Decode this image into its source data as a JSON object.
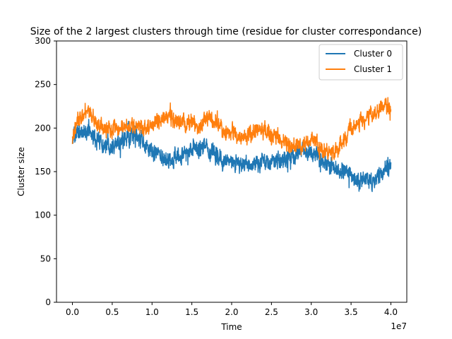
{
  "chart_data": {
    "type": "line",
    "title": "Size of the 2 largest clusters through time (residue for cluster correspondance)",
    "xlabel": "Time",
    "ylabel": "Cluster size",
    "x_offset_label": "1e7",
    "xlim": [
      -2000000,
      42000000
    ],
    "ylim": [
      0,
      300
    ],
    "x_ticks": [
      0,
      5000000,
      10000000,
      15000000,
      20000000,
      25000000,
      30000000,
      35000000,
      40000000
    ],
    "x_tick_labels": [
      "0.0",
      "0.5",
      "1.0",
      "1.5",
      "2.0",
      "2.5",
      "3.0",
      "3.5",
      "4.0"
    ],
    "y_ticks": [
      0,
      50,
      100,
      150,
      200,
      250,
      300
    ],
    "y_tick_labels": [
      "0",
      "50",
      "100",
      "150",
      "200",
      "250",
      "300"
    ],
    "grid": false,
    "legend_position": "upper right",
    "series": [
      {
        "name": "Cluster 0",
        "color": "#1f77b4",
        "x": [
          0,
          1000000,
          2000000,
          3000000,
          4000000,
          5000000,
          6000000,
          7000000,
          8000000,
          9000000,
          10000000,
          11000000,
          12000000,
          13000000,
          14000000,
          15000000,
          16000000,
          17000000,
          18000000,
          19000000,
          20000000,
          21000000,
          22000000,
          23000000,
          24000000,
          25000000,
          26000000,
          27000000,
          28000000,
          29000000,
          30000000,
          31000000,
          32000000,
          33000000,
          34000000,
          35000000,
          36000000,
          37000000,
          38000000,
          39000000,
          40000000
        ],
        "y": [
          190,
          193,
          198,
          188,
          180,
          182,
          186,
          188,
          192,
          185,
          170,
          168,
          162,
          166,
          170,
          175,
          178,
          176,
          168,
          163,
          160,
          158,
          160,
          158,
          162,
          160,
          163,
          165,
          170,
          176,
          172,
          165,
          158,
          155,
          150,
          145,
          140,
          138,
          140,
          150,
          158
        ],
        "noise_amplitude": 12
      },
      {
        "name": "Cluster 1",
        "color": "#ff7f0e",
        "x": [
          0,
          1000000,
          2000000,
          3000000,
          4000000,
          5000000,
          6000000,
          7000000,
          8000000,
          9000000,
          10000000,
          11000000,
          12000000,
          13000000,
          14000000,
          15000000,
          16000000,
          17000000,
          18000000,
          19000000,
          20000000,
          21000000,
          22000000,
          23000000,
          24000000,
          25000000,
          26000000,
          27000000,
          28000000,
          29000000,
          30000000,
          31000000,
          32000000,
          33000000,
          34000000,
          35000000,
          36000000,
          37000000,
          38000000,
          39000000,
          40000000
        ],
        "y": [
          188,
          212,
          218,
          206,
          200,
          198,
          202,
          200,
          204,
          198,
          202,
          208,
          213,
          206,
          204,
          208,
          200,
          214,
          206,
          198,
          194,
          190,
          190,
          198,
          196,
          191,
          188,
          182,
          178,
          178,
          188,
          180,
          172,
          171,
          185,
          198,
          205,
          212,
          220,
          225,
          228
        ],
        "noise_amplitude": 11
      }
    ]
  }
}
